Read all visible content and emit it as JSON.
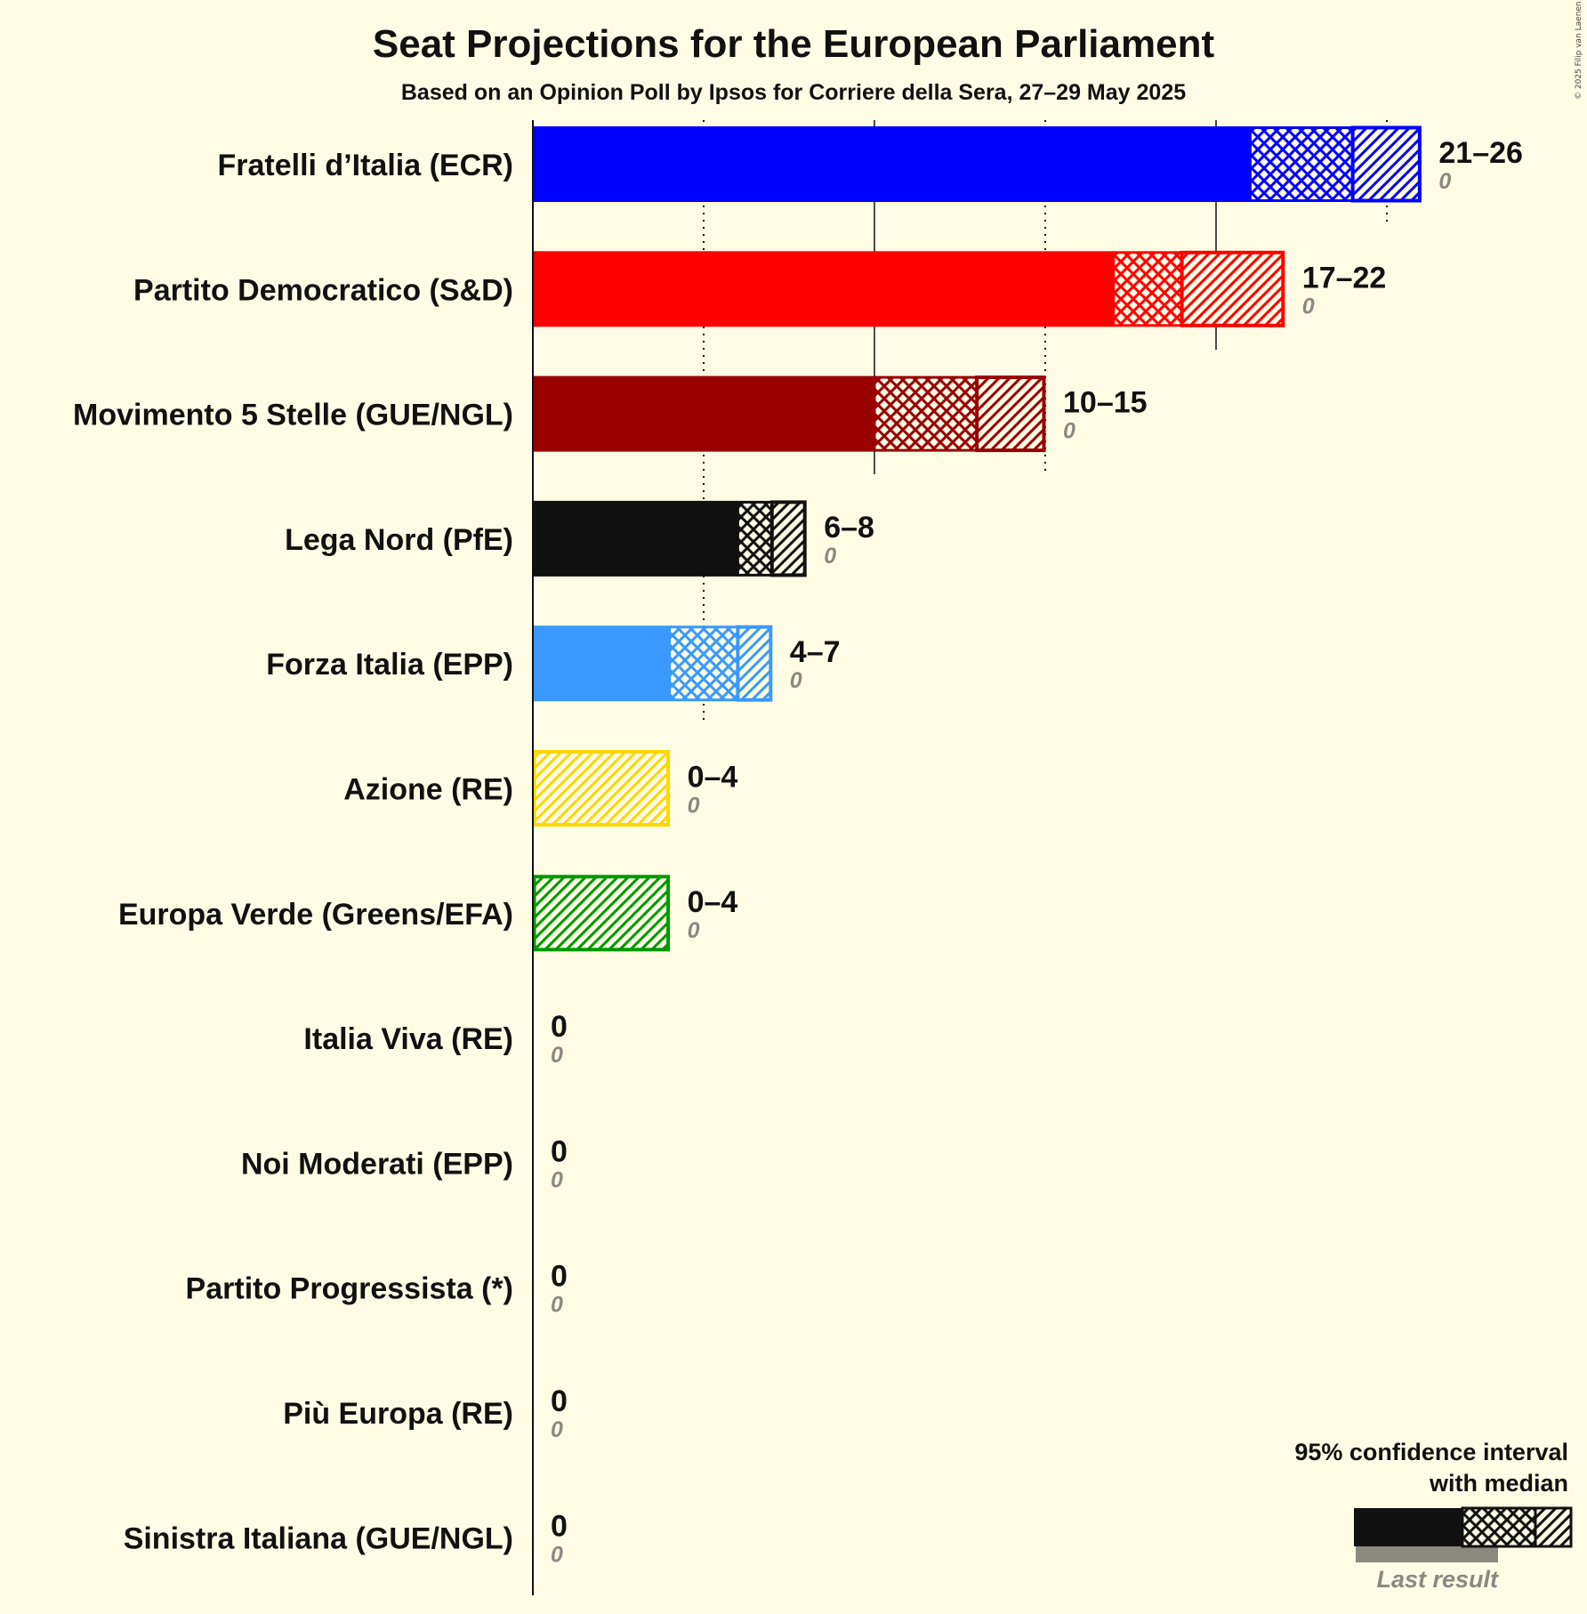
{
  "header": {
    "title": "Seat Projections for the European Parliament",
    "subtitle": "Based on an Opinion Poll by Ipsos for Corriere della Sera, 27–29 May 2025",
    "copyright": "© 2025 Filip van Laenen"
  },
  "legend": {
    "line1": "95% confidence interval",
    "line2": "with median",
    "last_result": "Last result"
  },
  "colors": {
    "background": "#FFFCE6",
    "text": "#111111",
    "last_result_gray": "#8A8A80"
  },
  "chart_data": {
    "type": "bar",
    "orientation": "horizontal",
    "title": "Seat Projections for the European Parliament",
    "subtitle": "Based on an Opinion Poll by Ipsos for Corriere della Sera, 27–29 May 2025",
    "xlabel": "",
    "ylabel": "",
    "xlim": [
      0,
      26
    ],
    "gridlines": [
      5,
      10,
      15,
      20,
      25
    ],
    "legend": [
      "95% confidence interval with median",
      "Last result"
    ],
    "categories": [
      "Fratelli d’Italia (ECR)",
      "Partito Democratico (S&D)",
      "Movimento 5 Stelle (GUE/NGL)",
      "Lega Nord (PfE)",
      "Forza Italia (EPP)",
      "Azione (RE)",
      "Europa Verde (Greens/EFA)",
      "Italia Viva (RE)",
      "Noi Moderati (EPP)",
      "Partito Progressista (*)",
      "Più Europa (RE)",
      "Sinistra Italiana (GUE/NGL)"
    ],
    "series": [
      {
        "name": "CI low",
        "values": [
          21,
          17,
          10,
          6,
          4,
          0,
          0,
          0,
          0,
          0,
          0,
          0
        ]
      },
      {
        "name": "Median",
        "values": [
          24,
          19,
          13,
          7,
          6,
          0,
          0,
          0,
          0,
          0,
          0,
          0
        ]
      },
      {
        "name": "CI high",
        "values": [
          26,
          22,
          15,
          8,
          7,
          4,
          4,
          0,
          0,
          0,
          0,
          0
        ]
      },
      {
        "name": "Last result",
        "values": [
          0,
          0,
          0,
          0,
          0,
          0,
          0,
          0,
          0,
          0,
          0,
          0
        ]
      }
    ],
    "parties": [
      {
        "name": "Fratelli d’Italia (ECR)",
        "low": 21,
        "median": 24,
        "high": 26,
        "range_label": "21–26",
        "last": 0,
        "last_label": "0",
        "color": "#0000FF"
      },
      {
        "name": "Partito Democratico (S&D)",
        "low": 17,
        "median": 19,
        "high": 22,
        "range_label": "17–22",
        "last": 0,
        "last_label": "0",
        "color": "#FF0000"
      },
      {
        "name": "Movimento 5 Stelle (GUE/NGL)",
        "low": 10,
        "median": 13,
        "high": 15,
        "range_label": "10–15",
        "last": 0,
        "last_label": "0",
        "color": "#990000"
      },
      {
        "name": "Lega Nord (PfE)",
        "low": 6,
        "median": 7,
        "high": 8,
        "range_label": "6–8",
        "last": 0,
        "last_label": "0",
        "color": "#111111"
      },
      {
        "name": "Forza Italia (EPP)",
        "low": 4,
        "median": 6,
        "high": 7,
        "range_label": "4–7",
        "last": 0,
        "last_label": "0",
        "color": "#3A99FF"
      },
      {
        "name": "Azione (RE)",
        "low": 0,
        "median": 0,
        "high": 4,
        "range_label": "0–4",
        "last": 0,
        "last_label": "0",
        "color": "#FFD700"
      },
      {
        "name": "Europa Verde (Greens/EFA)",
        "low": 0,
        "median": 0,
        "high": 4,
        "range_label": "0–4",
        "last": 0,
        "last_label": "0",
        "color": "#009900"
      },
      {
        "name": "Italia Viva (RE)",
        "low": 0,
        "median": 0,
        "high": 0,
        "range_label": "0",
        "last": 0,
        "last_label": "0",
        "color": "#111111"
      },
      {
        "name": "Noi Moderati (EPP)",
        "low": 0,
        "median": 0,
        "high": 0,
        "range_label": "0",
        "last": 0,
        "last_label": "0",
        "color": "#111111"
      },
      {
        "name": "Partito Progressista (*)",
        "low": 0,
        "median": 0,
        "high": 0,
        "range_label": "0",
        "last": 0,
        "last_label": "0",
        "color": "#111111"
      },
      {
        "name": "Più Europa (RE)",
        "low": 0,
        "median": 0,
        "high": 0,
        "range_label": "0",
        "last": 0,
        "last_label": "0",
        "color": "#111111"
      },
      {
        "name": "Sinistra Italiana (GUE/NGL)",
        "low": 0,
        "median": 0,
        "high": 0,
        "range_label": "0",
        "last": 0,
        "last_label": "0",
        "color": "#111111"
      }
    ]
  }
}
